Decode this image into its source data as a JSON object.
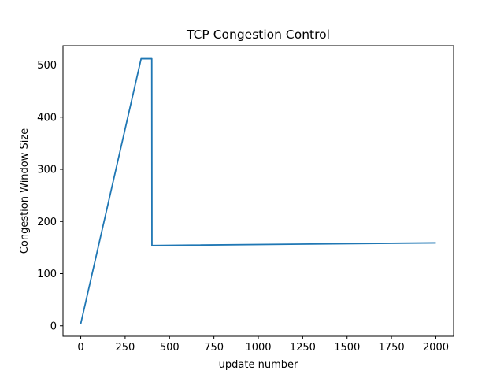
{
  "chart_data": {
    "type": "line",
    "title": "TCP Congestion Control",
    "xlabel": "update number",
    "ylabel": "Congestion Window Size",
    "xlim": [
      -100,
      2100
    ],
    "ylim": [
      -20,
      537
    ],
    "xticks": [
      0,
      250,
      500,
      750,
      1000,
      1250,
      1500,
      1750,
      2000
    ],
    "yticks": [
      0,
      100,
      200,
      300,
      400,
      500
    ],
    "grid": false,
    "legend": "none",
    "series": [
      {
        "color": "#1f77b4",
        "x": [
          0,
          340,
          345,
          395,
          400,
          401,
          2000
        ],
        "y": [
          4,
          512,
          512,
          512,
          512,
          154,
          159
        ]
      }
    ]
  }
}
